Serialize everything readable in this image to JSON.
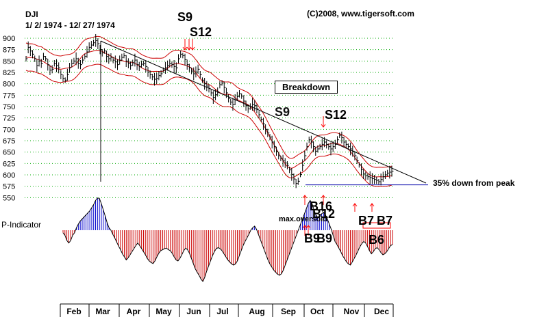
{
  "header": {
    "symbol": "DJI",
    "date_range": "1/ 2/ 1974 - 12/ 27/ 1974",
    "copyright": "(C)2008, www.tigersoft.com"
  },
  "colors": {
    "price_bars": "#000000",
    "bands": "#cc0000",
    "grid": "#00aa00",
    "indicator_positive": "#0000cc",
    "indicator_negative": "#cc0000",
    "signal_arrows": "#ff0000",
    "support_line": "#0000aa"
  },
  "chart_data": {
    "type": "line",
    "title": "DJI",
    "y_ticks": [
      "900",
      "875",
      "850",
      "825",
      "800",
      "775",
      "750",
      "725",
      "700",
      "675",
      "650",
      "625",
      "600",
      "575",
      "550"
    ],
    "ylim": [
      550,
      900
    ],
    "x_ticks": [
      "Feb",
      "Mar",
      "Apr",
      "May",
      "Jun",
      "Jul",
      "Aug",
      "Sep",
      "Oct",
      "Nov",
      "Dec"
    ],
    "grid": "horizontal dotted",
    "series": [
      {
        "values": [
          855,
          880,
          872,
          865,
          855,
          840,
          850,
          845,
          860,
          855,
          842,
          830,
          832,
          845,
          840,
          835,
          820,
          812,
          808,
          820,
          835,
          845,
          850,
          855,
          845,
          842,
          852,
          860,
          870,
          880,
          885,
          890,
          895,
          888,
          875,
          868,
          872,
          860,
          855,
          858,
          852,
          848,
          842,
          852,
          858,
          862,
          850,
          845,
          840,
          846,
          852,
          842,
          838,
          843,
          845,
          838,
          826,
          820,
          815,
          810,
          812,
          818,
          822,
          830,
          835,
          840,
          845,
          842,
          838,
          835,
          855,
          865,
          862,
          853,
          842,
          835,
          828,
          822,
          826,
          832,
          820,
          808,
          800,
          795,
          790,
          780,
          770,
          776,
          782,
          798,
          802,
          792,
          780,
          768,
          760,
          755,
          765,
          772,
          778,
          773,
          762,
          752,
          745,
          750,
          755,
          752,
          745,
          732,
          722,
          712,
          700,
          692,
          683,
          672,
          662,
          652,
          642,
          636,
          631,
          626,
          621,
          611,
          601,
          591,
          581,
          586,
          601,
          621,
          642,
          662,
          677,
          672,
          662,
          652,
          657,
          662,
          667,
          672,
          667,
          662,
          657,
          662,
          667,
          677,
          687,
          682,
          672,
          667,
          662,
          657,
          652,
          642,
          632,
          622,
          612,
          602,
          598,
          596,
          594,
          592,
          590,
          588,
          585,
          590,
          596,
          600,
          604,
          606,
          608
        ]
      }
    ],
    "bands_visible": true,
    "annotations": [
      "S9",
      "S12",
      "S12",
      "Breakdown",
      "S9",
      "B16",
      "B12",
      "B9",
      "B9",
      "B7",
      "B7",
      "B6",
      "max.oversold",
      "35% down from peak"
    ],
    "indicator": {
      "name": "P-Indicator",
      "values": [
        -5,
        -10,
        -20,
        -25,
        -20,
        -10,
        -5,
        5,
        12,
        18,
        22,
        26,
        30,
        34,
        38,
        44,
        50,
        58,
        63,
        62,
        52,
        40,
        28,
        15,
        5,
        0,
        -8,
        -15,
        -23,
        -31,
        -38,
        -46,
        -52,
        -58,
        -54,
        -48,
        -42,
        -36,
        -30,
        -25,
        -30,
        -36,
        -42,
        -48,
        -55,
        -60,
        -63,
        -65,
        -60,
        -52,
        -45,
        -40,
        -38,
        -36,
        -35,
        -38,
        -40,
        -45,
        -52,
        -58,
        -60,
        -55,
        -48,
        -40,
        -35,
        -38,
        -45,
        -55,
        -65,
        -75,
        -82,
        -88,
        -95,
        -100,
        -92,
        -80,
        -70,
        -60,
        -50,
        -42,
        -36,
        -34,
        -36,
        -40,
        -46,
        -52,
        -58,
        -62,
        -66,
        -68,
        -66,
        -60,
        -50,
        -40,
        -30,
        -22,
        -15,
        -8,
        0,
        5,
        8,
        2,
        -8,
        -18,
        -28,
        -38,
        -48,
        -58,
        -66,
        -72,
        -78,
        -82,
        -86,
        -88,
        -85,
        -78,
        -68,
        -58,
        -48,
        -38,
        -28,
        -18,
        -8,
        2,
        12,
        22,
        32,
        42,
        52,
        58,
        52,
        40,
        30,
        25,
        28,
        32,
        35,
        30,
        22,
        12,
        2,
        -10,
        -22,
        -28,
        -35,
        -42,
        -50,
        -56,
        -62,
        -66,
        -68,
        -62,
        -55,
        -48,
        -40,
        -32,
        -26,
        -22,
        -25,
        -32,
        -40,
        -46,
        -42,
        -36,
        -34,
        -38,
        -44,
        -48,
        -46,
        -42,
        -36,
        -30,
        -28
      ]
    },
    "support_level": 578
  },
  "labels": {
    "s9_top": "S9",
    "s12_top": "S12",
    "breakdown": "Breakdown",
    "s9_mid": "S9",
    "s12_right": "S12",
    "note_35": "35% down from peak",
    "p_indicator": "P-Indicator",
    "max_oversold": "max.oversold",
    "b16": "B16",
    "b12": "B12",
    "b9a": "B9",
    "b9b": "B9",
    "b7a": "B7",
    "b7b": "B7",
    "b6": "B6"
  }
}
